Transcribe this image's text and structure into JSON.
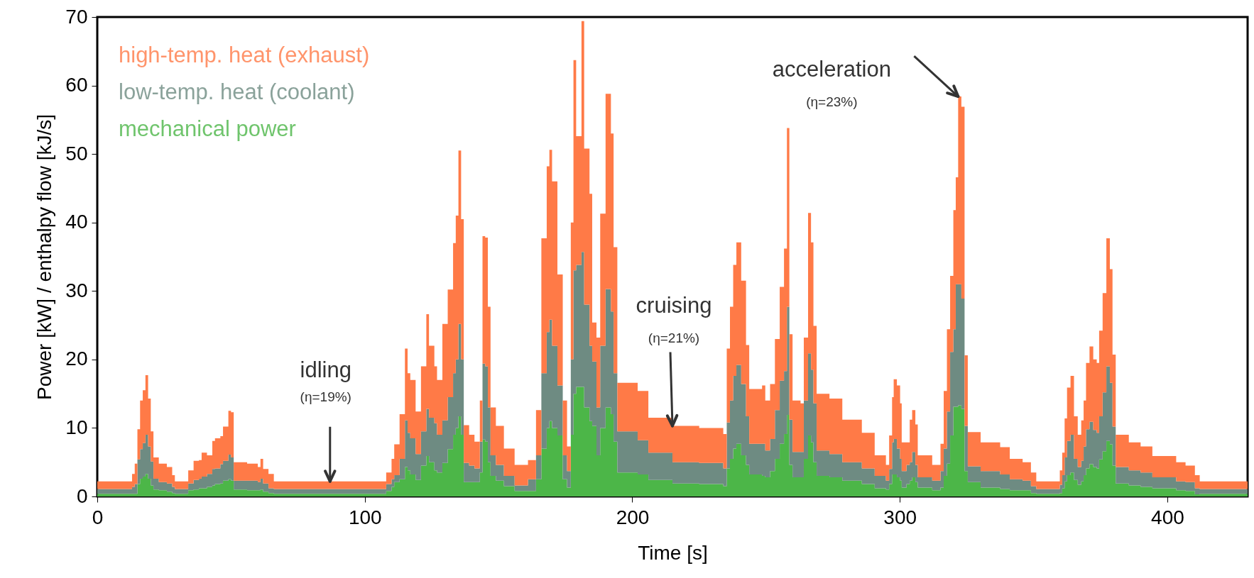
{
  "chart_data": {
    "type": "area",
    "stacked": true,
    "xlabel": "Time [s]",
    "ylabel": "Power [kW] / enthalpy flow [kJ/s]",
    "xlim": [
      0,
      430
    ],
    "xticks": [
      0,
      100,
      200,
      300,
      400
    ],
    "ylim": [
      0,
      70
    ],
    "yticks": [
      0,
      10,
      20,
      30,
      40,
      50,
      60,
      70
    ],
    "grid": false,
    "legend": "top left",
    "x": [
      0,
      12,
      13,
      14,
      15,
      16,
      17,
      18,
      19,
      20,
      21,
      23,
      26,
      28,
      29,
      33,
      34,
      36,
      38,
      39,
      41,
      43,
      44,
      46,
      47,
      49,
      50,
      51,
      56,
      60,
      61,
      62,
      64,
      66,
      106,
      108,
      110,
      111,
      113,
      115,
      116,
      117,
      119,
      121,
      123,
      124,
      126,
      127,
      129,
      131,
      133,
      134,
      135,
      136,
      137,
      139,
      141,
      143,
      144,
      145,
      146,
      147,
      149,
      152,
      156,
      161,
      164,
      166,
      168,
      169,
      170,
      172,
      174,
      175.6,
      177,
      178,
      179,
      181,
      182,
      184,
      185,
      186.6,
      188,
      190,
      192,
      193,
      194.4,
      202,
      206,
      215,
      225,
      234,
      235.3,
      236.5,
      237.7,
      238.9,
      240.7,
      242.5,
      243.7,
      248.5,
      249.7,
      251.5,
      253.3,
      255.1,
      256.7,
      257.8,
      258.7,
      259.9,
      262.9,
      264.1,
      265.7,
      266.8,
      267.7,
      268.9,
      273.7,
      278.5,
      285.8,
      290.6,
      294.8,
      296,
      297.1,
      297.7,
      298.9,
      300.1,
      300.7,
      302.5,
      303.7,
      304.6,
      305.8,
      306.7,
      312.1,
      315.2,
      316.4,
      317.6,
      318.8,
      320,
      320.9,
      321.8,
      323,
      324.2,
      325.4,
      330.2,
      337.5,
      341.1,
      345.9,
      349,
      351,
      359,
      359.8,
      360.7,
      361.6,
      362.5,
      363.8,
      365.1,
      366.5,
      367.8,
      368.7,
      369.6,
      370.9,
      372.3,
      373.6,
      374.5,
      375.8,
      377.2,
      378.5,
      379.5,
      380.7,
      385.6,
      390,
      394.4,
      403.3,
      406.8,
      410.3,
      412.1,
      430
    ],
    "series": [
      {
        "name": "mechanical power",
        "color": "#4cb648",
        "values": [
          0.4,
          0.4,
          0.4,
          0.4,
          1.8,
          2.6,
          2.9,
          3.3,
          2.6,
          1.6,
          1.0,
          0.9,
          0.7,
          0.5,
          0.4,
          0.4,
          0.9,
          1.0,
          1.2,
          1.2,
          1.4,
          1.6,
          1.8,
          1.9,
          2.3,
          2.5,
          2.3,
          1.0,
          0.9,
          0.9,
          1.0,
          0.7,
          0.5,
          0.4,
          0.4,
          0.8,
          1.4,
          2.1,
          2.5,
          4.3,
          3.8,
          3.2,
          2.4,
          4.5,
          5.9,
          5.0,
          3.8,
          3.5,
          4.9,
          6.9,
          9,
          10,
          11.7,
          9,
          2.1,
          2.1,
          2.1,
          3.5,
          8.3,
          8,
          5,
          3,
          2.3,
          1.5,
          0.8,
          0.8,
          2.5,
          7,
          10,
          11,
          10,
          8.9,
          2.5,
          1.3,
          9,
          15,
          16,
          16,
          13,
          11,
          10.3,
          6,
          10,
          13,
          12,
          8,
          3.5,
          3.2,
          2.4,
          1.9,
          1.8,
          1.5,
          4.1,
          5.5,
          7,
          7.7,
          6,
          4.6,
          3.2,
          3,
          2.8,
          3.7,
          5.5,
          7.7,
          9.1,
          11.9,
          4.6,
          2.8,
          2.8,
          5.5,
          8.9,
          7.9,
          5,
          3,
          2.8,
          2.3,
          1.8,
          1.2,
          1,
          1.8,
          3.2,
          3.2,
          2.8,
          2.3,
          1.3,
          1.8,
          2.3,
          2.8,
          2.1,
          1.3,
          0.9,
          1.3,
          3,
          4.8,
          8.9,
          13.1,
          13.1,
          13.3,
          12.8,
          3.7,
          2.1,
          1.3,
          1.1,
          0.9,
          0.9,
          0.5,
          0.4,
          0.4,
          0.5,
          1.2,
          2.2,
          3.1,
          3.5,
          2.4,
          1.7,
          2.2,
          3.1,
          4.1,
          4.7,
          4.3,
          4.1,
          5.4,
          6.6,
          8.1,
          7.6,
          4.5,
          1.9,
          1.6,
          1.4,
          1.2,
          0.9,
          0.8,
          0.3,
          0.4,
          0.4
        ]
      },
      {
        "name": "low-temp. heat (coolant)",
        "color": "#6e8b82",
        "values": [
          0.7,
          0.7,
          1.0,
          1.4,
          3.6,
          4.3,
          4.9,
          5.7,
          4.7,
          3.5,
          1.6,
          1.2,
          1.2,
          0.9,
          0.7,
          0.7,
          1.0,
          1.4,
          1.4,
          1.7,
          1.9,
          2.4,
          2.3,
          2.8,
          2.9,
          3.6,
          3.4,
          1.3,
          1.4,
          1.2,
          1.6,
          1.2,
          0.7,
          0.7,
          0.7,
          1.0,
          1.1,
          1.0,
          3.0,
          6.8,
          5.5,
          5.3,
          3.8,
          5.0,
          6.9,
          6.5,
          6.9,
          5.5,
          6.2,
          7.6,
          9,
          10,
          13.5,
          11,
          2.8,
          2.4,
          2.0,
          4.5,
          11.1,
          11,
          8,
          3,
          2.3,
          1.5,
          0.8,
          1.7,
          3.5,
          11,
          14,
          14.8,
          12,
          7.3,
          3.5,
          2.4,
          11,
          18,
          17.8,
          19.7,
          15,
          11,
          9.4,
          7,
          12,
          17.3,
          15,
          10,
          6,
          5,
          4,
          3.1,
          3.1,
          2.6,
          6.7,
          8.5,
          10.6,
          11.5,
          10.4,
          7.1,
          4.5,
          4.7,
          3.9,
          4.7,
          7.1,
          9.2,
          9.2,
          15.8,
          6.6,
          3.7,
          3.7,
          8.5,
          12,
          10.6,
          8.6,
          3.7,
          3.4,
          2.7,
          2.3,
          1.8,
          1.3,
          2.2,
          4.7,
          5.2,
          4.2,
          3.2,
          2.4,
          2.8,
          2.7,
          3.7,
          2.5,
          1.5,
          1.4,
          2.4,
          4,
          7.6,
          12.2,
          11.3,
          17.9,
          17.7,
          16.1,
          6.6,
          2.3,
          2.4,
          2.1,
          1.6,
          1.4,
          1,
          0.7,
          0.7,
          1.2,
          1.9,
          3.5,
          5,
          5.5,
          3.1,
          2.6,
          3,
          4.2,
          5.7,
          6.2,
          5.4,
          5.2,
          6.3,
          8.6,
          10.9,
          9,
          5.7,
          2.4,
          2.2,
          2.1,
          1.6,
          1.3,
          1.3,
          0.9,
          0.7,
          0.7
        ]
      },
      {
        "name": "high-temp. heat (exhaust)",
        "color": "#ff7a47",
        "values": [
          1.1,
          1.1,
          1.9,
          3.0,
          4.4,
          7.1,
          7.7,
          8.7,
          7.0,
          4.4,
          3.1,
          2.7,
          2.4,
          1.7,
          1.1,
          1.1,
          1.9,
          2.8,
          2.7,
          3.5,
          2.7,
          4.1,
          4.4,
          4.1,
          5.0,
          6.4,
          6.6,
          2.7,
          2.5,
          2.2,
          2.9,
          2.1,
          2.1,
          1.1,
          1.1,
          1.7,
          3.0,
          4.5,
          6.5,
          10.5,
          8.7,
          8.5,
          6.2,
          9.5,
          13.8,
          10.5,
          8.3,
          8.0,
          14.1,
          15.7,
          19,
          21,
          25.3,
          20.5,
          5.5,
          4.5,
          3.9,
          6.0,
          18.6,
          18.8,
          14.7,
          7,
          5.7,
          4,
          3.0,
          2.8,
          6.6,
          19.7,
          24.2,
          24.8,
          24,
          16.2,
          8,
          3.6,
          20,
          30.7,
          18.8,
          33.7,
          22.8,
          22.2,
          5.7,
          10.2,
          19.3,
          28.5,
          26,
          18.4,
          7.1,
          7.2,
          5.1,
          5.3,
          5.1,
          5.0,
          10.8,
          13.7,
          16.2,
          17.9,
          15.1,
          10.4,
          8,
          8.5,
          7.3,
          8,
          10.4,
          13.7,
          17.9,
          26.1,
          12.5,
          7.5,
          7.1,
          9.2,
          20.5,
          18.6,
          11.3,
          8.3,
          8.1,
          6.2,
          5.2,
          3,
          2.3,
          4.9,
          6.6,
          8.7,
          9.2,
          8.1,
          4.2,
          3.3,
          6.2,
          6.1,
          5.9,
          3.2,
          2.3,
          4,
          8.4,
          12,
          11.1,
          17.4,
          15.6,
          27.4,
          28,
          10.3,
          5,
          4.2,
          4,
          3,
          2.7,
          2,
          1.1,
          1.1,
          2.1,
          3.3,
          5.7,
          7.8,
          8.6,
          6.2,
          4.7,
          5.9,
          6.7,
          9.7,
          11,
          10.3,
          10.2,
          12.5,
          14.5,
          18.7,
          16.6,
          10.5,
          4.7,
          4.1,
          3.8,
          3.1,
          2.8,
          2.4,
          1.9,
          1.1,
          1.1
        ]
      }
    ],
    "annotations": [
      {
        "text": "idling\n(η=19%)",
        "x": 87,
        "y": 2.2
      },
      {
        "text": "cruising\n(η=21%)",
        "x": 215,
        "y": 10.3
      },
      {
        "text": "acceleration\n(η=23%)",
        "x": 321.8,
        "y": 58.4
      }
    ]
  }
}
